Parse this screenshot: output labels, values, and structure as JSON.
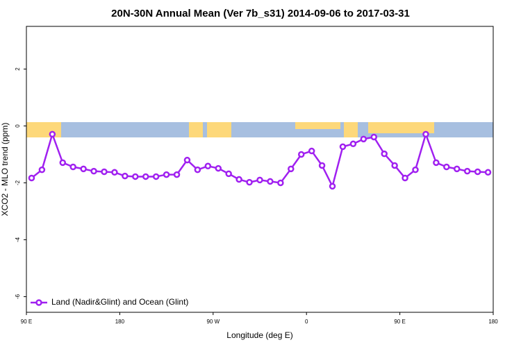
{
  "chart_data": {
    "type": "line",
    "title": "20N-30N Annual Mean (Ver 7b_s31)   2014-09-06 to 2017-03-31",
    "x_label": "Longitude (deg E)",
    "y_label": "XCO2 - MLO trend (ppm)",
    "x": [
      95,
      105,
      115,
      125,
      135,
      145,
      155,
      165,
      175,
      185,
      195,
      205,
      215,
      225,
      235,
      245,
      255,
      265,
      275,
      285,
      295,
      305,
      315,
      325,
      335,
      345,
      355,
      365,
      375,
      385,
      395,
      405,
      415,
      425,
      435,
      445,
      455,
      465,
      475,
      485,
      495,
      505,
      515,
      525,
      535
    ],
    "series": [
      {
        "name": "Land (Nadir&Glint) and Ocean (Glint)",
        "color": "#a020f0",
        "values": [
          -1.83,
          -1.54,
          -0.29,
          -1.29,
          -1.44,
          -1.51,
          -1.59,
          -1.61,
          -1.63,
          -1.76,
          -1.78,
          -1.78,
          -1.78,
          -1.71,
          -1.71,
          -1.2,
          -1.54,
          -1.41,
          -1.49,
          -1.68,
          -1.88,
          -1.98,
          -1.9,
          -1.95,
          -2.0,
          -1.51,
          -1.0,
          -0.88,
          -1.39,
          -2.12,
          -0.73,
          -0.63,
          -0.46,
          -0.39,
          -0.98,
          -1.39,
          -1.83,
          -1.54,
          -0.29,
          -1.29,
          -1.44,
          -1.51,
          -1.59,
          -1.61,
          -1.63
        ]
      }
    ],
    "xlim": [
      90,
      540
    ],
    "xticks": [
      {
        "value": 90,
        "label": "90 E"
      },
      {
        "value": 180,
        "label": "180"
      },
      {
        "value": 270,
        "label": "90 W"
      },
      {
        "value": 360,
        "label": "0"
      },
      {
        "value": 450,
        "label": "90 E"
      },
      {
        "value": 540,
        "label": "180"
      }
    ],
    "ylim": [
      -6.55,
      3.5
    ],
    "yticks": [
      -6,
      -4,
      -2,
      0,
      2
    ],
    "legend": "bottom-left"
  }
}
